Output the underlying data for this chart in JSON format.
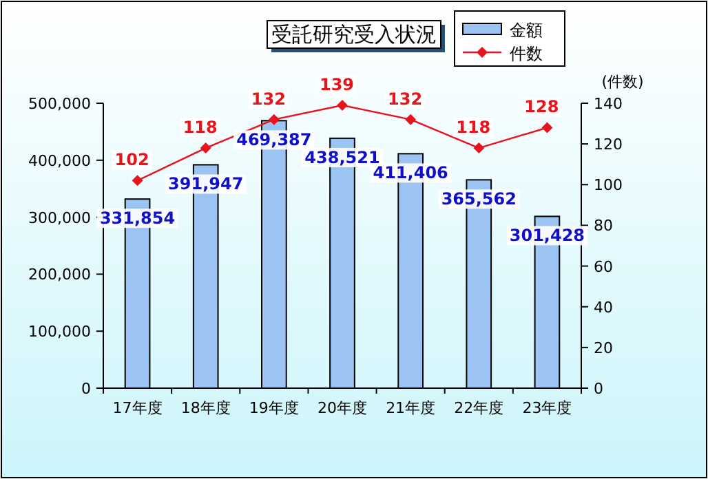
{
  "chart_data": {
    "type": "bar",
    "title": "受託研究受入状況",
    "y2label": "(件数)",
    "categories": [
      "17年度",
      "18年度",
      "19年度",
      "20年度",
      "21年度",
      "22年度",
      "23年度"
    ],
    "series": [
      {
        "name": "金額",
        "color": "#9cc4f2",
        "values": [
          331854,
          391947,
          469387,
          438521,
          411406,
          365562,
          301428
        ],
        "value_labels": [
          "331,854",
          "391,947",
          "469,387",
          "438,521",
          "411,406",
          "365,562",
          "301,428"
        ]
      },
      {
        "name": "件数",
        "type": "line",
        "axis": "y2",
        "color": "#e8141c",
        "values": [
          102,
          118,
          132,
          139,
          132,
          118,
          128
        ],
        "value_labels": [
          "102",
          "118",
          "132",
          "139",
          "132",
          "118",
          "128"
        ]
      }
    ],
    "ylim": [
      0,
      500000
    ],
    "yticks": [
      {
        "value": 0,
        "label": "0"
      },
      {
        "value": 100000,
        "label": "100,000"
      },
      {
        "value": 200000,
        "label": "200,000"
      },
      {
        "value": 300000,
        "label": "300,000"
      },
      {
        "value": 400000,
        "label": "400,000"
      },
      {
        "value": 500000,
        "label": "500,000"
      }
    ],
    "y2lim": [
      0,
      140
    ],
    "y2ticks": [
      0,
      20,
      40,
      60,
      80,
      100,
      120,
      140
    ],
    "marker": "diamond",
    "grid": false,
    "legend": "top right"
  }
}
